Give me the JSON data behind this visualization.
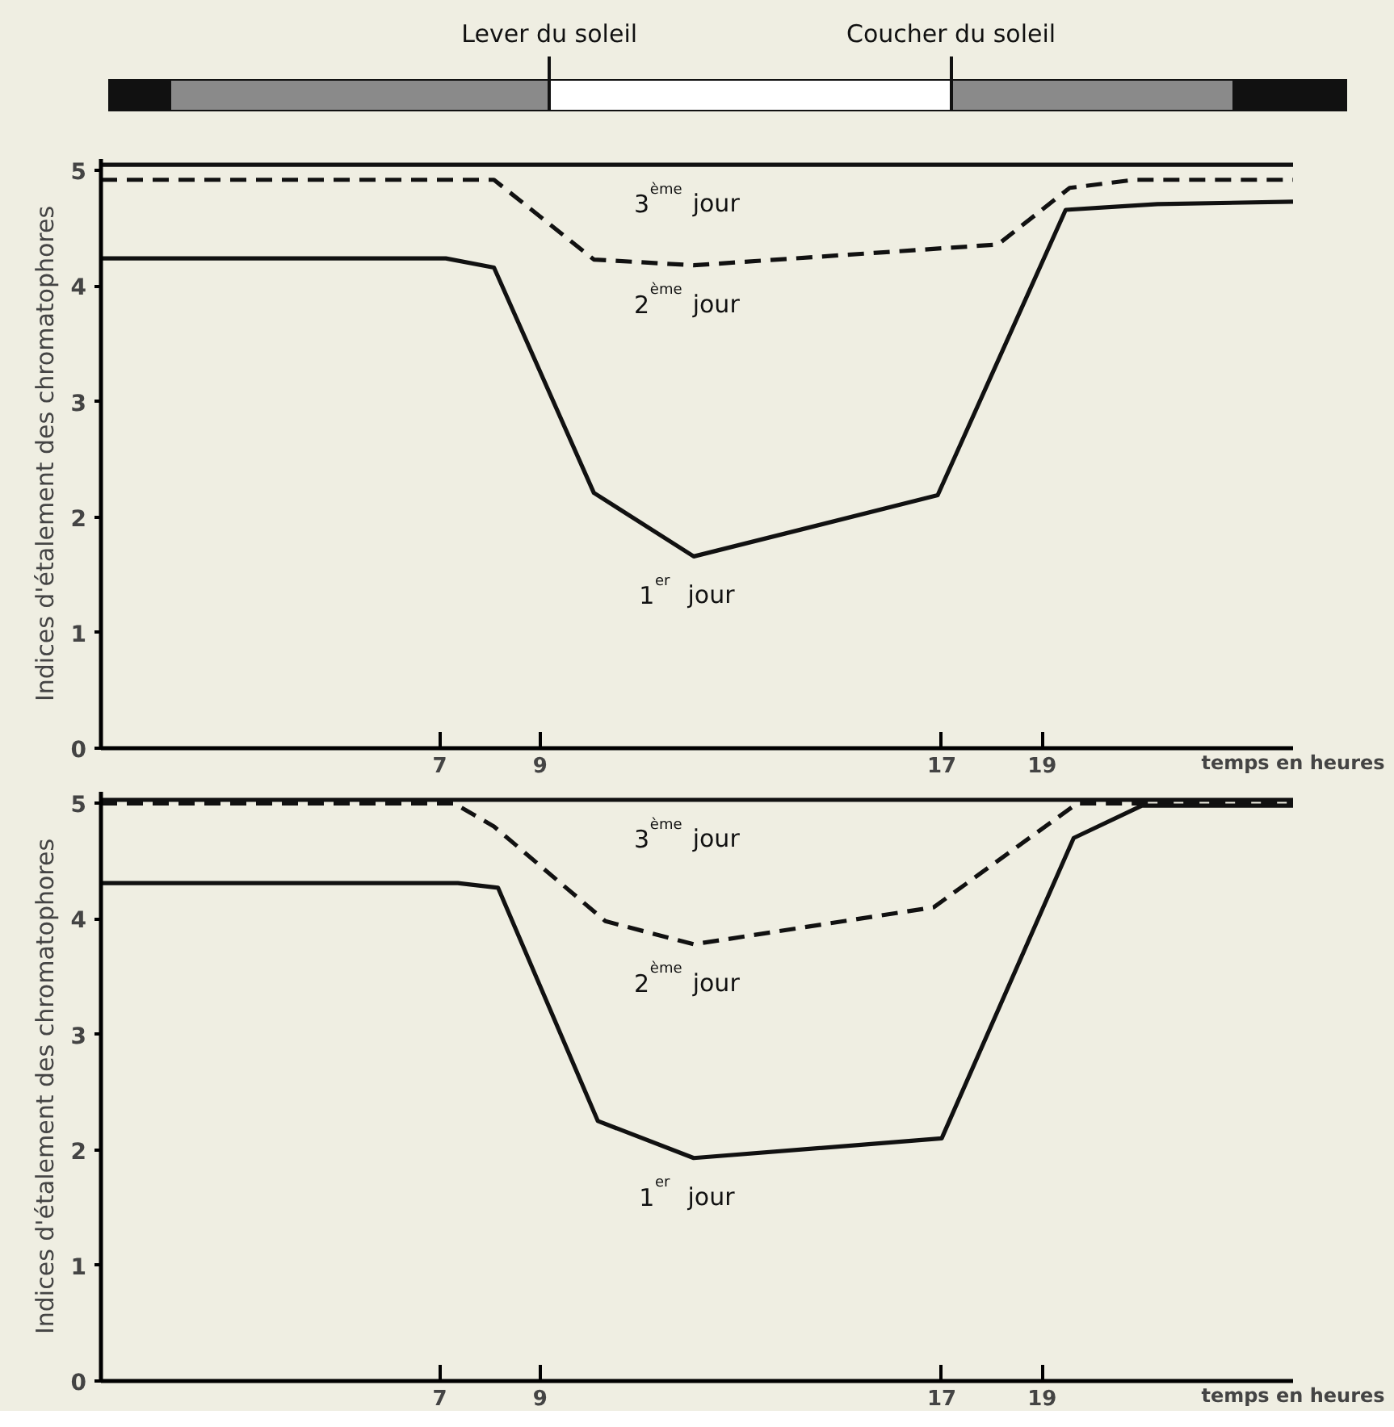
{
  "chart_data": [
    {
      "type": "line",
      "xlabel": "temps en heures",
      "ylabel": "Indices d'étalement des chromatophores",
      "xlim": [
        0.25,
        24
      ],
      "ylim": [
        0,
        5.1
      ],
      "xticks": [
        7,
        9,
        17,
        19
      ],
      "yticks": [
        0,
        1,
        2,
        3,
        4,
        5
      ],
      "series": [
        {
          "color": "#111111",
          "line_style": "solid",
          "x": [
            0.25,
            24
          ],
          "values": [
            5.05,
            5.05
          ]
        },
        {
          "color": "#111111",
          "line_style": "dashed",
          "x": [
            0.25,
            8.08,
            10.07,
            12.06,
            18.12,
            19.55,
            20.83,
            24
          ],
          "values": [
            4.92,
            4.92,
            4.23,
            4.18,
            4.36,
            4.85,
            4.92,
            4.92
          ]
        },
        {
          "color": "#111111",
          "line_style": "solid",
          "x": [
            0.25,
            7.12,
            8.08,
            10.07,
            12.06,
            16.92,
            19.47,
            21.3,
            24
          ],
          "values": [
            4.24,
            4.24,
            4.16,
            2.21,
            1.66,
            2.19,
            4.66,
            4.71,
            4.73
          ]
        }
      ],
      "annotations": [
        "3$^{ème}$ jour",
        "2$^{ème}$ jour",
        "1$^{er}$ jour",
        "Lever du soleil",
        "Coucher du soleil"
      ]
    },
    {
      "type": "line",
      "xlabel": "temps en heures",
      "ylabel": "Indices d'étalement des chromatophores",
      "xlim": [
        0.25,
        24
      ],
      "ylim": [
        0,
        5.1
      ],
      "xticks": [
        7,
        9,
        17,
        19
      ],
      "yticks": [
        0,
        1,
        2,
        3,
        4,
        5
      ],
      "series": [
        {
          "color": "#111111",
          "line_style": "solid",
          "x": [
            0.25,
            24
          ],
          "values": [
            5.03,
            5.03
          ]
        },
        {
          "color": "#111111",
          "line_style": "dashed",
          "x": [
            0.25,
            7.28,
            8.08,
            10.3,
            12.06,
            16.84,
            19.7,
            24
          ],
          "values": [
            5.0,
            5.0,
            4.8,
            3.98,
            3.78,
            4.1,
            5.0,
            5.0
          ]
        },
        {
          "color": "#111111",
          "line_style": "solid",
          "x": [
            0.25,
            7.36,
            8.16,
            10.15,
            12.06,
            17.0,
            19.63,
            20.99,
            24
          ],
          "values": [
            4.31,
            4.31,
            4.27,
            2.25,
            1.93,
            2.1,
            4.7,
            4.98,
            4.98
          ]
        }
      ],
      "annotations": [
        "3$^{ème}$ jour",
        "2$^{ème}$ jour",
        "1$^{er}$ jour"
      ]
    }
  ]
}
